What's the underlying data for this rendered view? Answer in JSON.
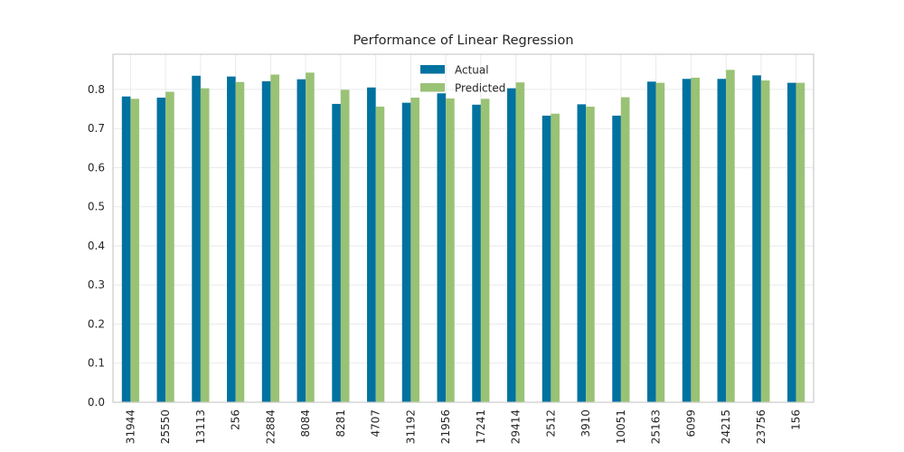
{
  "chart_data": {
    "type": "bar",
    "title": "Performance of Linear Regression",
    "xlabel": "",
    "ylabel": "",
    "ylim": [
      0,
      0.89
    ],
    "yticks": [
      "0.0",
      "0.1",
      "0.2",
      "0.3",
      "0.4",
      "0.5",
      "0.6",
      "0.7",
      "0.8"
    ],
    "categories": [
      "31944",
      "25550",
      "13113",
      "256",
      "22884",
      "8084",
      "8281",
      "4707",
      "31192",
      "21956",
      "17241",
      "29414",
      "2512",
      "3910",
      "10051",
      "25163",
      "6099",
      "24215",
      "23756",
      "156"
    ],
    "series": [
      {
        "name": "Actual",
        "color": "#0072a0",
        "values": [
          0.782,
          0.779,
          0.835,
          0.833,
          0.821,
          0.826,
          0.763,
          0.805,
          0.766,
          0.79,
          0.761,
          0.803,
          0.733,
          0.762,
          0.733,
          0.82,
          0.827,
          0.827,
          0.836,
          0.817
        ]
      },
      {
        "name": "Predicted",
        "color": "#9ac275",
        "values": [
          0.776,
          0.794,
          0.803,
          0.819,
          0.838,
          0.843,
          0.799,
          0.756,
          0.779,
          0.777,
          0.776,
          0.818,
          0.738,
          0.756,
          0.78,
          0.817,
          0.83,
          0.85,
          0.823,
          0.817
        ]
      }
    ],
    "grid": true,
    "legend": "top-center"
  }
}
